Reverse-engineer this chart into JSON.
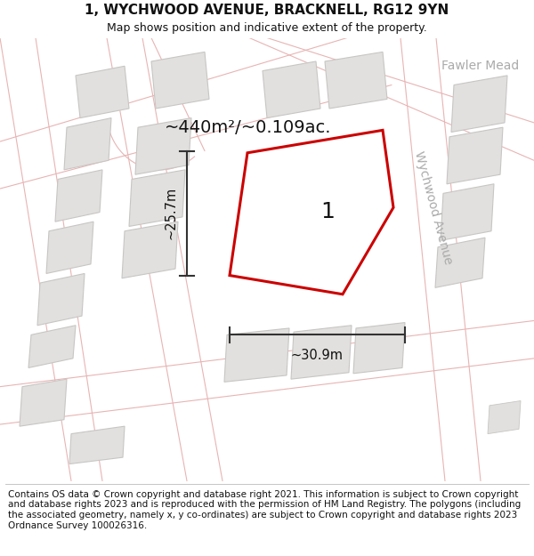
{
  "title": "1, WYCHWOOD AVENUE, BRACKNELL, RG12 9YN",
  "subtitle": "Map shows position and indicative extent of the property.",
  "footer": "Contains OS data © Crown copyright and database right 2021. This information is subject to Crown copyright and database rights 2023 and is reproduced with the permission of HM Land Registry. The polygons (including the associated geometry, namely x, y co-ordinates) are subject to Crown copyright and database rights 2023 Ordnance Survey 100026316.",
  "area_text": "~440m²/~0.109ac.",
  "width_text": "~30.9m",
  "height_text": "~25.7m",
  "label_text": "1",
  "map_bg": "#f0eeec",
  "road_fill": "#f5d8d8",
  "road_line": "#e8b4b4",
  "road_line_thin": "#e8b4b4",
  "block_fill": "#e2e0de",
  "block_edge": "#c8c6c4",
  "property_fill": "#ffffff",
  "property_edge": "#cc0000",
  "dim_color": "#333333",
  "text_color": "#111111",
  "street_label_color": "#aaaaaa",
  "title_fontsize": 11,
  "subtitle_fontsize": 9,
  "footer_fontsize": 7.5,
  "area_fontsize": 14,
  "label_fontsize": 18,
  "dim_fontsize": 10.5,
  "street_fontsize": 10
}
